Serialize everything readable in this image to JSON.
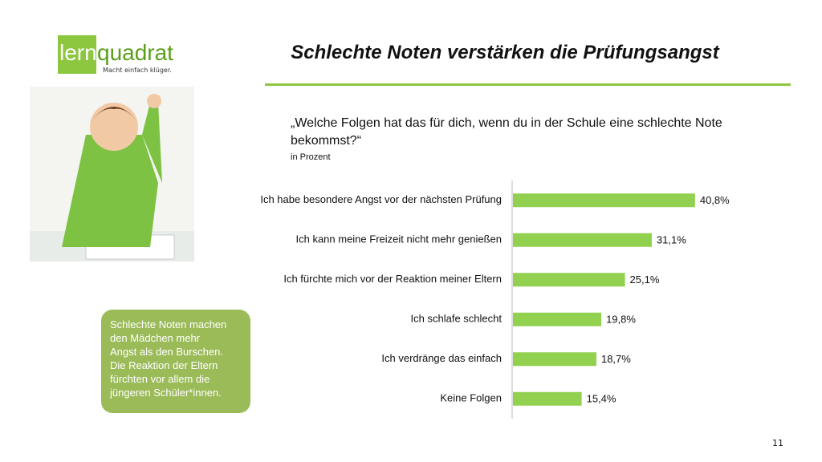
{
  "logo": {
    "part1": "lern",
    "part2": "quadrat",
    "tagline": "Macht einfach klüger."
  },
  "title": "Schlechte Noten verstärken die Prüfungsangst",
  "callout": {
    "lines": [
      "Schlechte Noten machen",
      "den Mädchen mehr",
      "Angst als den Burschen.",
      "Die Reaktion der Eltern",
      "fürchten vor allem die",
      "jüngeren Schüler*innen."
    ]
  },
  "page_number": "11",
  "chart_data": {
    "type": "bar",
    "orientation": "horizontal",
    "title": "„Welche Folgen hat das für dich, wenn du in der Schule eine schlechte Note bekommst?“",
    "subtitle": "in Prozent",
    "categories": [
      "Ich habe besondere Angst vor der nächsten Prüfung",
      "Ich kann meine Freizeit nicht mehr genießen",
      "Ich fürchte mich vor der Reaktion meiner Eltern",
      "Ich schlafe schlecht",
      "Ich verdränge das einfach",
      "Keine Folgen"
    ],
    "values": [
      40.8,
      31.1,
      25.1,
      19.8,
      18.7,
      15.4
    ],
    "value_labels": [
      "40,8%",
      "31,1%",
      "25,1%",
      "19,8%",
      "18,7%",
      "15,4%"
    ],
    "color": "#92d050"
  }
}
